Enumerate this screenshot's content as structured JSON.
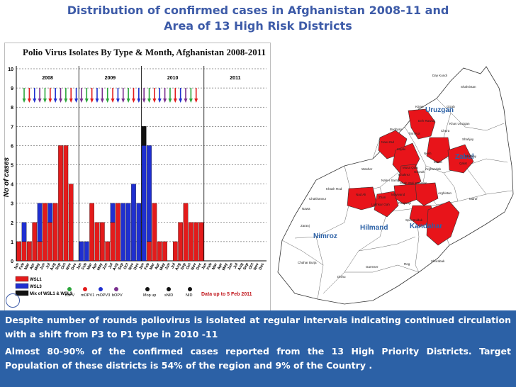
{
  "slide": {
    "title_line1": "Distribution of confirmed cases in Afghanistan 2008-11 and",
    "title_line2": "Area of 13 High Risk Districts"
  },
  "chart_data": {
    "type": "bar",
    "title": "Polio Virus Isolates By Type & Month, Afghanistan 2008-2011",
    "ylabel": "No of cases",
    "ylim": [
      0,
      10
    ],
    "yticks": [
      "0",
      "1",
      "2",
      "3",
      "4",
      "5",
      "6",
      "7",
      "8",
      "9",
      "10"
    ],
    "year_labels": [
      "2008",
      "2009",
      "2010",
      "2011"
    ],
    "months": [
      "Jan",
      "Feb",
      "Mar",
      "Apr",
      "May",
      "Jun",
      "Jul",
      "Aug",
      "Sep",
      "Oct",
      "Nov",
      "Dec",
      "Jan",
      "Feb",
      "Mar",
      "Apr",
      "May",
      "Jun",
      "Jul",
      "Aug",
      "Sep",
      "Oct",
      "Nov",
      "Dec",
      "Jan",
      "Feb",
      "Mar",
      "Apr",
      "May",
      "Jun",
      "Jul",
      "Aug",
      "Sep",
      "Oct",
      "Nov",
      "Dec",
      "Jan",
      "Feb",
      "Mar",
      "Apr",
      "May",
      "Jun",
      "Jul",
      "Aug",
      "Sep",
      "Oct",
      "Nov",
      "Dec"
    ],
    "series": [
      {
        "name": "WSL1",
        "color": "#e31b1b",
        "values": [
          1,
          1,
          1,
          2,
          1,
          3,
          2,
          3,
          6,
          6,
          4,
          0,
          0,
          0,
          3,
          2,
          2,
          1,
          2,
          3,
          0,
          0,
          0,
          0,
          0,
          1,
          3,
          1,
          1,
          0,
          1,
          2,
          3,
          2,
          2,
          2,
          0,
          0,
          0,
          0,
          0,
          0,
          0,
          0,
          0,
          0,
          0,
          0
        ]
      },
      {
        "name": "WSL3",
        "color": "#1f2fd0",
        "values": [
          0,
          1,
          0,
          0,
          2,
          0,
          1,
          0,
          0,
          0,
          0,
          0,
          1,
          1,
          0,
          0,
          0,
          0,
          1,
          0,
          3,
          3,
          4,
          3,
          6,
          5,
          0,
          0,
          0,
          0,
          0,
          0,
          0,
          0,
          0,
          0,
          0,
          0,
          0,
          0,
          0,
          0,
          0,
          0,
          0,
          0,
          0,
          0
        ]
      },
      {
        "name": "Mix of WSL1 & WSL3",
        "color": "#111111",
        "values": [
          0,
          0,
          0,
          0,
          0,
          0,
          0,
          0,
          0,
          0,
          0,
          0,
          0,
          0,
          0,
          0,
          0,
          0,
          0,
          0,
          0,
          0,
          0,
          0,
          1,
          0,
          0,
          0,
          0,
          0,
          0,
          0,
          0,
          0,
          0,
          0,
          0,
          0,
          0,
          0,
          0,
          0,
          0,
          0,
          0,
          0,
          0,
          0
        ]
      }
    ],
    "campaign_legend": [
      {
        "label": "tOPV",
        "color": "#2aa63a"
      },
      {
        "label": "mOPV1",
        "color": "#e31b1b"
      },
      {
        "label": "mOPV3",
        "color": "#1f2fd0"
      },
      {
        "label": "bOPV",
        "color": "#7a2f8f"
      },
      {
        "label": "Mop up",
        "color": "#111111"
      },
      {
        "label": "sNID",
        "color": "#111111"
      },
      {
        "label": "NID",
        "color": "#111111"
      }
    ],
    "data_note": "Data up to 5 Feb 2011"
  },
  "map": {
    "province_labels": [
      "Uruzgan",
      "Zabul",
      "Kandahar",
      "Hilmand",
      "Nimroz"
    ],
    "highlight_color": "#e8141a",
    "district_labels": [
      "Day Kundi",
      "Shahristan",
      "Gizab",
      "Kijran",
      "Deh Rawud",
      "Khas Uruzgan",
      "Chora",
      "Baghran",
      "Tirin Kot",
      "Shahjoy",
      "Kajaki",
      "Nesh",
      "Mizan",
      "Qalat",
      "Arghandab",
      "Naw Zad",
      "Musa Qala",
      "Shinkay",
      "Washer",
      "Ghorak",
      "Khakrez",
      "Nahr-i Sarraj",
      "Shah Wali Kot",
      "Daman",
      "Arghistan",
      "Maruf",
      "Khash Rod",
      "Nad Ali",
      "Lashkar Gah",
      "Maywand",
      "Panjwayi",
      "Zhari",
      "Spin Boldak",
      "Chakhansur",
      "Zaranj",
      "Nawa",
      "Garmser",
      "Reg",
      "Chahar Burja",
      "Dishu",
      "Shorabak"
    ]
  },
  "notes": {
    "line1": "Despite number of rounds poliovirus is isolated at regular intervals indicating continued circulation with a shift from P3 to P1 type in 2010 -11",
    "line2": "Almost 80-90% of the confirmed cases reported from the 13 High Priority Districts. Target Population of these districts is 54% of the region and 9% of the Country ."
  }
}
